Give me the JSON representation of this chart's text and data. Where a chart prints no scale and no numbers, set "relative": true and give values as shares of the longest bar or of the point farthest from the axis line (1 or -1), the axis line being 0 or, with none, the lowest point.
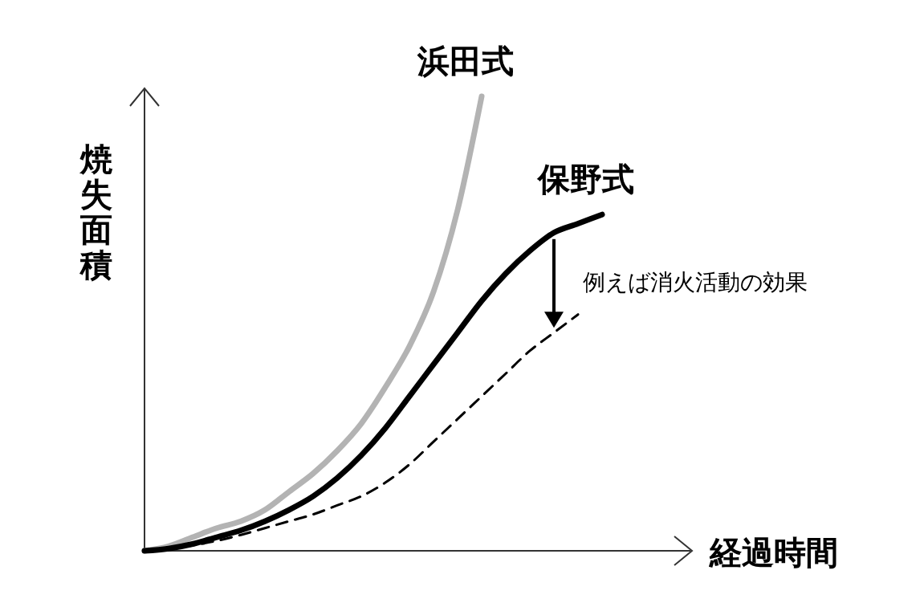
{
  "chart_data": {
    "type": "line",
    "relative": true,
    "xlabel": "経過時間",
    "ylabel": "焼失面積",
    "categories": [
      null,
      null,
      null,
      null,
      null,
      null,
      null,
      null,
      null,
      null,
      null,
      null,
      null,
      null,
      null,
      null,
      null,
      null,
      null,
      null
    ],
    "series": [
      {
        "name": "浜田式",
        "color": "#b3b3b3",
        "line_style": "solid",
        "values": [
          0,
          0.01,
          0.03,
          0.05,
          0.065,
          0.09,
          0.13,
          0.17,
          0.22,
          0.28,
          0.36,
          0.45,
          0.57,
          0.75,
          1,
          null,
          null,
          null,
          null,
          null
        ]
      },
      {
        "name": "保野式",
        "color": "#000000",
        "line_style": "solid",
        "values": [
          0,
          0.005,
          0.015,
          0.03,
          0.045,
          0.065,
          0.09,
          0.12,
          0.16,
          0.21,
          0.27,
          0.34,
          0.41,
          0.48,
          0.55,
          0.61,
          0.66,
          0.7,
          0.72,
          0.74
        ]
      },
      {
        "color": "#000000",
        "line_style": "dashed",
        "values": [
          0,
          0.004,
          0.012,
          0.022,
          0.035,
          0.05,
          0.065,
          0.08,
          0.1,
          0.12,
          0.15,
          0.19,
          0.24,
          0.29,
          0.34,
          0.39,
          0.44,
          0.48,
          0.52,
          null
        ]
      }
    ],
    "annotations": [
      "例えば消火活動の効果"
    ]
  }
}
